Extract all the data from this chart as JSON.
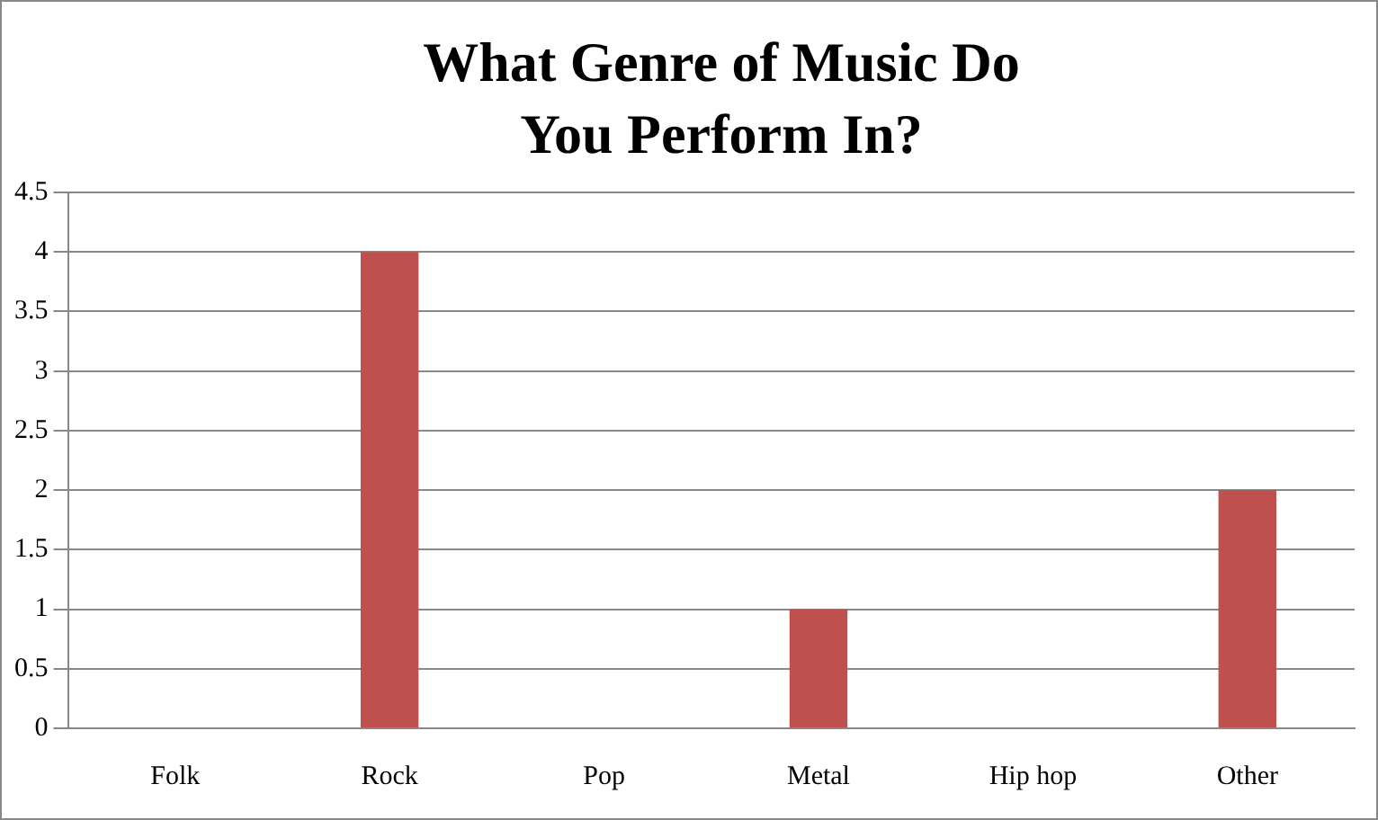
{
  "chart_data": {
    "type": "bar",
    "title": "What Genre of Music Do You Perform In?",
    "categories": [
      "Folk",
      "Rock",
      "Pop",
      "Metal",
      "Hip hop",
      "Other"
    ],
    "values": [
      0,
      4,
      0,
      1,
      0,
      2
    ],
    "color": "#c0504d",
    "ylim": [
      0,
      4.5
    ],
    "yticks": [
      0,
      0.5,
      1,
      1.5,
      2,
      2.5,
      3,
      3.5,
      4,
      4.5
    ],
    "grid": "y",
    "legend": false
  }
}
